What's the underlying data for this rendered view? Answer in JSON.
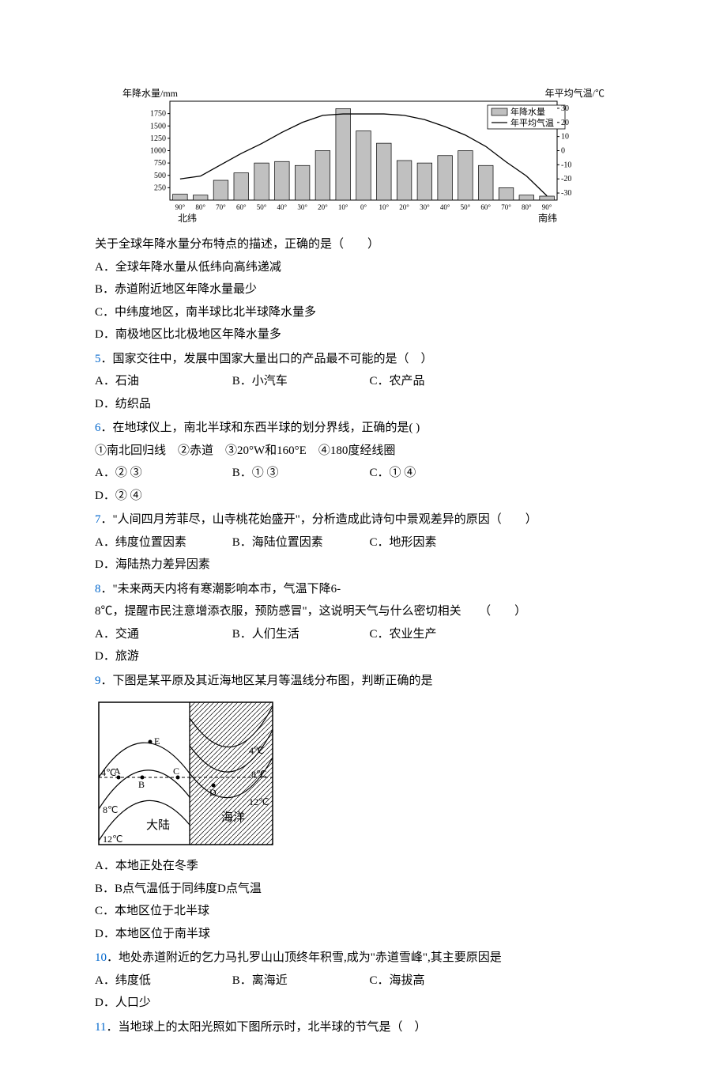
{
  "chart": {
    "type": "bar-line-combo",
    "left_axis_title": "年降水量/mm",
    "right_axis_title": "年平均气温/℃",
    "left_bottom_label": "北纬",
    "right_bottom_label": "南纬",
    "legend_bar": "年降水量",
    "legend_line": "年平均气温",
    "x_labels": [
      "90°",
      "80°",
      "70°",
      "60°",
      "50°",
      "40°",
      "30°",
      "20°",
      "10°",
      "0°",
      "10°",
      "20°",
      "30°",
      "40°",
      "50°",
      "60°",
      "70°",
      "80°",
      "90°"
    ],
    "left_y_ticks": [
      250,
      500,
      750,
      1000,
      1250,
      1500,
      1750
    ],
    "right_y_ticks": [
      -30,
      -20,
      -10,
      0,
      10,
      20,
      30
    ],
    "bar_values": [
      120,
      100,
      400,
      550,
      750,
      780,
      700,
      1000,
      1850,
      1400,
      1150,
      800,
      750,
      900,
      1000,
      700,
      250,
      100,
      80
    ],
    "line_values": [
      -20,
      -18,
      -10,
      -2,
      5,
      13,
      20,
      25,
      26,
      26,
      26,
      25,
      22,
      17,
      11,
      3,
      -8,
      -18,
      -32
    ],
    "bar_color": "#c0c0c0",
    "bar_border": "#000000",
    "line_color": "#000000",
    "grid_color": "#000000",
    "bg_color": "#ffffff",
    "axis_fontsize": 10,
    "title_fontsize": 12,
    "left_ylim": [
      0,
      2000
    ],
    "right_ylim": [
      -35,
      35
    ]
  },
  "q4": {
    "intro": "关于全球年降水量分布特点的描述，正确的是（　　）",
    "optA": "A．全球年降水量从低纬向高纬递减",
    "optB": "B．赤道附近地区年降水量最少",
    "optC": "C．中纬度地区，南半球比北半球降水量多",
    "optD": "D．南极地区比北极地区年降水量多"
  },
  "q5": {
    "num": "5",
    "text": "．国家交往中，发展中国家大量出口的产品最不可能的是（　）",
    "optA": "A．石油",
    "optB": "B．小汽车",
    "optC": "C．农产品",
    "optD": "D．纺织品"
  },
  "q6": {
    "num": "6",
    "text": "．在地球仪上，南北半球和东西半球的划分界线，正确的是(  )",
    "sub": "①南北回归线　②赤道　③20°W和160°E　④180度经线圈",
    "optA": "A．② ③",
    "optB": "B．① ③",
    "optC": "C．① ④",
    "optD": "D．② ④"
  },
  "q7": {
    "num": "7",
    "text": "．\"人间四月芳菲尽，山寺桃花始盛开\"，分析造成此诗句中景观差异的原因（　　）",
    "optA": "A．纬度位置因素",
    "optB": "B．海陆位置因素",
    "optC": "C．地形因素",
    "optD": "D．海陆热力差异因素"
  },
  "q8": {
    "num": "8",
    "text": "．\"未来两天内将有寒潮影响本市，气温下降6-",
    "text2": "8℃，提醒市民注意增添衣服，预防感冒\"，这说明天气与什么密切相关　　（　　）",
    "optA": "A．交通",
    "optB": "B．人们生活",
    "optC": "C．农业生产",
    "optD": "D．旅游"
  },
  "q9": {
    "num": "9",
    "text": "．下图是某平原及其近海地区某月等温线分布图，判断正确的是",
    "optA": "A．本地正处在冬季",
    "optB": "B．B点气温低于同纬度D点气温",
    "optC": "C．本地区位于北半球",
    "optD": "D．本地区位于南半球",
    "diagram": {
      "type": "isotherm-map",
      "land_label": "大陆",
      "ocean_label": "海洋",
      "points": [
        "A",
        "B",
        "C",
        "D",
        "E"
      ],
      "temps": [
        "4℃",
        "8℃",
        "12℃",
        "4℃",
        "8℃",
        "12℃"
      ],
      "border_color": "#000000",
      "line_color": "#000000",
      "hatch_spacing": 4
    }
  },
  "q10": {
    "num": "10",
    "text": "．地处赤道附近的乞力马扎罗山山顶终年积雪,成为\"赤道雪峰\",其主要原因是",
    "optA": "A．纬度低",
    "optB": "B．离海近",
    "optC": "C．海拔高",
    "optD": "D．人口少"
  },
  "q11": {
    "num": "11",
    "text": "．当地球上的太阳光照如下图所示时，北半球的节气是（　）"
  }
}
